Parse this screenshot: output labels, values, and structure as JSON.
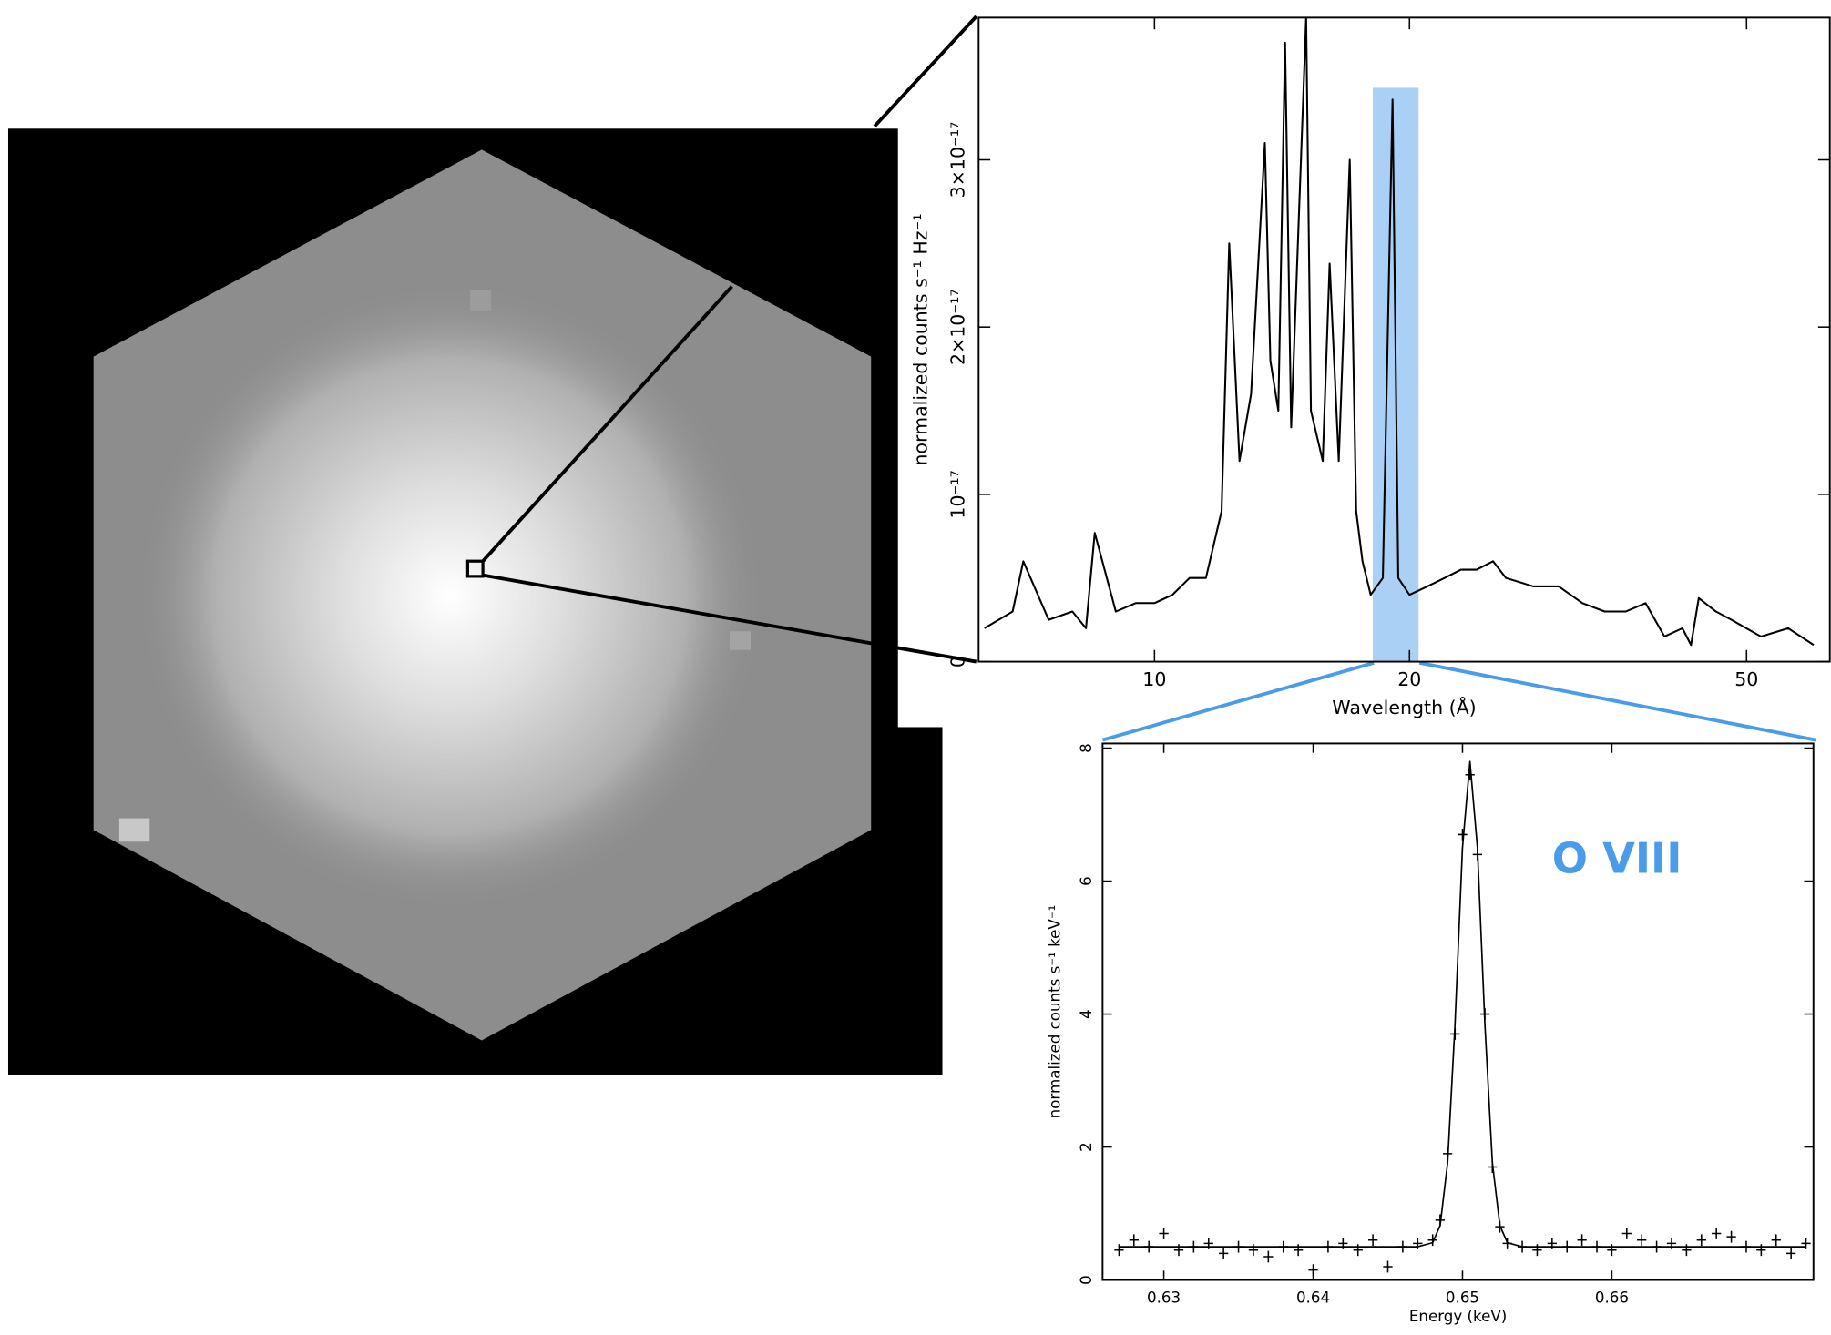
{
  "chart_data": [
    {
      "type": "line",
      "xlabel": "Wavelength (Å)",
      "ylabel": "normalized counts s⁻¹ Hz⁻¹",
      "xscale": "log",
      "xlim": [
        6.2,
        62.7
      ],
      "ylim": [
        0,
        3.85e-17
      ],
      "xticks": [
        10,
        20,
        50
      ],
      "yticks": [
        0,
        {
          "value": 1e-17,
          "label": "10⁻¹⁷"
        },
        {
          "value": 2e-17,
          "label": "2×10⁻¹⁷"
        },
        {
          "value": 3e-17,
          "label": "3×10⁻¹⁷"
        }
      ],
      "highlight_range": [
        18.1,
        20.5
      ],
      "highlight_color": "#9cc8f4",
      "x": [
        6.3,
        6.8,
        7.0,
        7.5,
        8.0,
        8.3,
        8.5,
        9.0,
        9.5,
        10,
        10.5,
        11,
        11.5,
        12,
        12.25,
        12.6,
        13,
        13.5,
        13.7,
        14.0,
        14.26,
        14.5,
        15.1,
        15.3,
        15.8,
        16.1,
        16.5,
        17.0,
        17.3,
        17.6,
        18.0,
        18.6,
        19.1,
        19.4,
        20,
        21,
        22,
        23,
        24,
        25.1,
        26,
        28,
        30,
        32,
        34,
        36,
        38,
        40,
        42,
        43,
        43.9,
        46,
        48,
        52,
        56,
        60
      ],
      "series": [
        {
          "color": "#000000",
          "style": "line",
          "values": [
            2e-18,
            3e-18,
            6e-18,
            2.5e-18,
            3e-18,
            2e-18,
            7.7e-18,
            3e-18,
            3.5e-18,
            3.5e-18,
            4e-18,
            5e-18,
            5e-18,
            9e-18,
            2.5e-17,
            1.2e-17,
            1.6e-17,
            3.1e-17,
            1.8e-17,
            1.5e-17,
            3.7e-17,
            1.4e-17,
            3.85e-17,
            1.5e-17,
            1.2e-17,
            2.38e-17,
            1.2e-17,
            3e-17,
            9e-18,
            6e-18,
            4e-18,
            5e-18,
            3.36e-17,
            5e-18,
            4e-18,
            4.5e-18,
            5e-18,
            5.5e-18,
            5.5e-18,
            6e-18,
            5e-18,
            4.5e-18,
            4.5e-18,
            3.5e-18,
            3e-18,
            3e-18,
            3.5e-18,
            1.5e-18,
            2e-18,
            1e-18,
            3.8e-18,
            3e-18,
            2.5e-18,
            1.5e-18,
            2e-18,
            1e-18
          ]
        }
      ]
    },
    {
      "type": "line",
      "xlabel": "Energy (keV)",
      "ylabel": "normalized counts s⁻¹ keV⁻¹",
      "xscale": "linear",
      "xlim": [
        0.6259,
        0.6735
      ],
      "ylim": [
        0,
        8.07
      ],
      "xticks": [
        0.63,
        0.64,
        0.65,
        0.66
      ],
      "yticks": [
        0,
        2,
        4,
        6,
        8
      ],
      "annotation": "O VIII",
      "annotation_color": "#4a9ce8",
      "x": [
        0.627,
        0.628,
        0.629,
        0.63,
        0.631,
        0.632,
        0.633,
        0.634,
        0.635,
        0.636,
        0.637,
        0.638,
        0.639,
        0.64,
        0.641,
        0.642,
        0.643,
        0.644,
        0.645,
        0.646,
        0.647,
        0.648,
        0.6485,
        0.649,
        0.6495,
        0.65,
        0.6505,
        0.651,
        0.6515,
        0.652,
        0.6525,
        0.653,
        0.654,
        0.655,
        0.656,
        0.657,
        0.658,
        0.659,
        0.66,
        0.661,
        0.662,
        0.663,
        0.664,
        0.665,
        0.666,
        0.667,
        0.668,
        0.669,
        0.67,
        0.671,
        0.672,
        0.673
      ],
      "series": [
        {
          "color": "#000000",
          "style": "cross",
          "values": [
            0.45,
            0.6,
            0.5,
            0.7,
            0.45,
            0.5,
            0.55,
            0.4,
            0.5,
            0.45,
            0.35,
            0.5,
            0.45,
            0.15,
            0.5,
            0.55,
            0.45,
            0.6,
            0.2,
            0.5,
            0.55,
            0.6,
            0.9,
            1.9,
            3.7,
            6.7,
            7.6,
            6.4,
            4.0,
            1.7,
            0.8,
            0.55,
            0.5,
            0.45,
            0.55,
            0.5,
            0.6,
            0.5,
            0.45,
            0.7,
            0.6,
            0.5,
            0.55,
            0.45,
            0.6,
            0.7,
            0.65,
            0.5,
            0.45,
            0.6,
            0.4,
            0.55
          ]
        },
        {
          "color": "#000000",
          "style": "line",
          "values": [
            0.5,
            0.5,
            0.5,
            0.5,
            0.5,
            0.5,
            0.5,
            0.5,
            0.5,
            0.5,
            0.5,
            0.5,
            0.5,
            0.5,
            0.5,
            0.5,
            0.5,
            0.5,
            0.5,
            0.5,
            0.5,
            0.56,
            0.82,
            1.76,
            3.84,
            6.5,
            7.8,
            6.5,
            3.84,
            1.76,
            0.82,
            0.56,
            0.5,
            0.5,
            0.5,
            0.5,
            0.5,
            0.5,
            0.5,
            0.5,
            0.5,
            0.5,
            0.5,
            0.5,
            0.5,
            0.5,
            0.5,
            0.5,
            0.5,
            0.5,
            0.5,
            0.5
          ]
        }
      ]
    }
  ]
}
